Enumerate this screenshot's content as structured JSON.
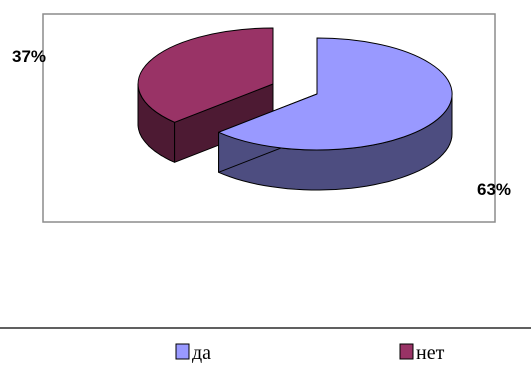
{
  "chart_data": {
    "type": "pie",
    "title": "",
    "labels": [
      "да",
      "нет"
    ],
    "values": [
      63,
      37
    ],
    "data_labels": [
      "63%",
      "37%"
    ],
    "colors": [
      "#9999ff",
      "#993366"
    ],
    "side_colors": [
      "#4d4d80",
      "#4d1a33"
    ],
    "legend": "bottom",
    "exploded": true,
    "three_d": true
  }
}
